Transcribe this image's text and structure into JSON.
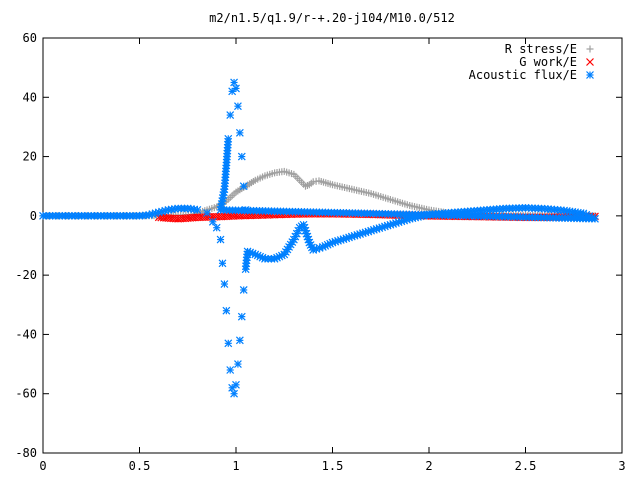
{
  "chart_data": {
    "type": "scatter",
    "title": "m2/n1.5/q1.9/r-+.20-j104/M10.0/512",
    "xlabel": "",
    "ylabel": "",
    "xlim": [
      0,
      3
    ],
    "ylim": [
      -80,
      60
    ],
    "x_ticks": [
      0,
      0.5,
      1,
      1.5,
      2,
      2.5,
      3
    ],
    "x_tick_labels": [
      "0",
      "0.5",
      "1",
      "1.5",
      "2",
      "2.5",
      "3"
    ],
    "y_ticks": [
      -80,
      -60,
      -40,
      -20,
      0,
      20,
      40,
      60
    ],
    "y_tick_labels": [
      "-80",
      "-60",
      "-40",
      "-20",
      "0",
      "20",
      "40",
      "60"
    ],
    "grid": false,
    "legend_position": "top-right",
    "series": [
      {
        "name": "R stress/E",
        "marker": "plus",
        "color": "#a0a0a0",
        "points": [
          [
            0.0,
            0
          ],
          [
            0.1,
            0
          ],
          [
            0.2,
            0
          ],
          [
            0.3,
            0
          ],
          [
            0.4,
            0
          ],
          [
            0.5,
            0
          ],
          [
            0.6,
            0.1
          ],
          [
            0.7,
            0.2
          ],
          [
            0.78,
            0.5
          ],
          [
            0.85,
            2
          ],
          [
            0.9,
            3
          ],
          [
            0.95,
            5
          ],
          [
            1.0,
            8
          ],
          [
            1.05,
            10
          ],
          [
            1.1,
            12
          ],
          [
            1.15,
            13.5
          ],
          [
            1.2,
            14.5
          ],
          [
            1.25,
            15
          ],
          [
            1.3,
            14
          ],
          [
            1.33,
            12
          ],
          [
            1.36,
            10
          ],
          [
            1.38,
            10.5
          ],
          [
            1.4,
            11.5
          ],
          [
            1.43,
            11.8
          ],
          [
            1.5,
            10.5
          ],
          [
            1.6,
            9
          ],
          [
            1.7,
            7.5
          ],
          [
            1.8,
            5.5
          ],
          [
            1.9,
            3.5
          ],
          [
            2.0,
            2
          ],
          [
            2.1,
            1
          ],
          [
            2.2,
            0.6
          ],
          [
            2.3,
            0.4
          ],
          [
            2.4,
            0.3
          ],
          [
            2.5,
            0.2
          ],
          [
            2.6,
            0.1
          ],
          [
            2.7,
            0.1
          ],
          [
            2.8,
            0
          ],
          [
            2.86,
            0
          ]
        ]
      },
      {
        "name": "G work/E",
        "marker": "cross",
        "color": "#ff0000",
        "points": [
          [
            0.6,
            -0.5
          ],
          [
            0.7,
            -1
          ],
          [
            0.8,
            -0.5
          ],
          [
            0.9,
            -0.3
          ],
          [
            1.0,
            0
          ],
          [
            1.1,
            0.2
          ],
          [
            1.2,
            0.4
          ],
          [
            1.3,
            0.6
          ],
          [
            1.4,
            0.7
          ],
          [
            1.5,
            0.7
          ],
          [
            1.6,
            0.6
          ],
          [
            1.7,
            0.5
          ],
          [
            1.8,
            0.3
          ],
          [
            1.9,
            0.2
          ],
          [
            2.0,
            0
          ],
          [
            2.1,
            -0.1
          ],
          [
            2.2,
            -0.2
          ],
          [
            2.3,
            -0.3
          ],
          [
            2.4,
            -0.4
          ],
          [
            2.5,
            -0.5
          ],
          [
            2.6,
            -0.5
          ],
          [
            2.7,
            -0.4
          ],
          [
            2.8,
            -0.3
          ],
          [
            2.86,
            -0.2
          ]
        ]
      },
      {
        "name": "Acoustic flux/E",
        "marker": "star",
        "color": "#0080ff",
        "points": [
          [
            0.0,
            0
          ],
          [
            0.1,
            0
          ],
          [
            0.2,
            0
          ],
          [
            0.3,
            0
          ],
          [
            0.4,
            0
          ],
          [
            0.5,
            0
          ],
          [
            0.55,
            0.3
          ],
          [
            0.6,
            1.2
          ],
          [
            0.65,
            2
          ],
          [
            0.7,
            2.5
          ],
          [
            0.75,
            2.5
          ],
          [
            0.8,
            2
          ],
          [
            0.85,
            1
          ],
          [
            0.88,
            -2
          ],
          [
            0.9,
            -4
          ],
          [
            0.92,
            -8
          ],
          [
            0.93,
            -16
          ],
          [
            0.94,
            -23
          ],
          [
            0.95,
            -32
          ],
          [
            0.96,
            -43
          ],
          [
            0.97,
            -52
          ],
          [
            0.98,
            -58
          ],
          [
            0.99,
            -60
          ],
          [
            1.0,
            -57
          ],
          [
            1.01,
            -50
          ],
          [
            1.02,
            -42
          ],
          [
            1.03,
            -34
          ],
          [
            1.04,
            -25
          ],
          [
            1.05,
            -18
          ],
          [
            1.06,
            -12
          ],
          [
            1.1,
            -13
          ],
          [
            1.15,
            -14.5
          ],
          [
            1.2,
            -14.5
          ],
          [
            1.25,
            -13
          ],
          [
            1.3,
            -8
          ],
          [
            1.33,
            -4
          ],
          [
            1.35,
            -3
          ],
          [
            1.38,
            -9
          ],
          [
            1.4,
            -11.5
          ],
          [
            1.45,
            -10.5
          ],
          [
            1.5,
            -9
          ],
          [
            1.6,
            -7
          ],
          [
            1.7,
            -5
          ],
          [
            1.8,
            -3
          ],
          [
            1.9,
            -1
          ],
          [
            2.0,
            0.5
          ],
          [
            2.1,
            1
          ],
          [
            2.2,
            1.5
          ],
          [
            2.3,
            2
          ],
          [
            2.4,
            2.5
          ],
          [
            2.5,
            2.7
          ],
          [
            2.6,
            2.4
          ],
          [
            2.7,
            1.8
          ],
          [
            2.8,
            0.8
          ],
          [
            2.86,
            -1
          ],
          [
            0.92,
            2
          ],
          [
            0.94,
            9
          ],
          [
            0.95,
            17
          ],
          [
            0.96,
            26
          ],
          [
            0.97,
            34
          ],
          [
            0.98,
            42
          ],
          [
            0.99,
            45
          ],
          [
            1.0,
            43
          ],
          [
            1.01,
            37
          ],
          [
            1.02,
            28
          ],
          [
            1.03,
            20
          ],
          [
            1.04,
            10
          ],
          [
            1.05,
            2
          ]
        ]
      }
    ]
  }
}
